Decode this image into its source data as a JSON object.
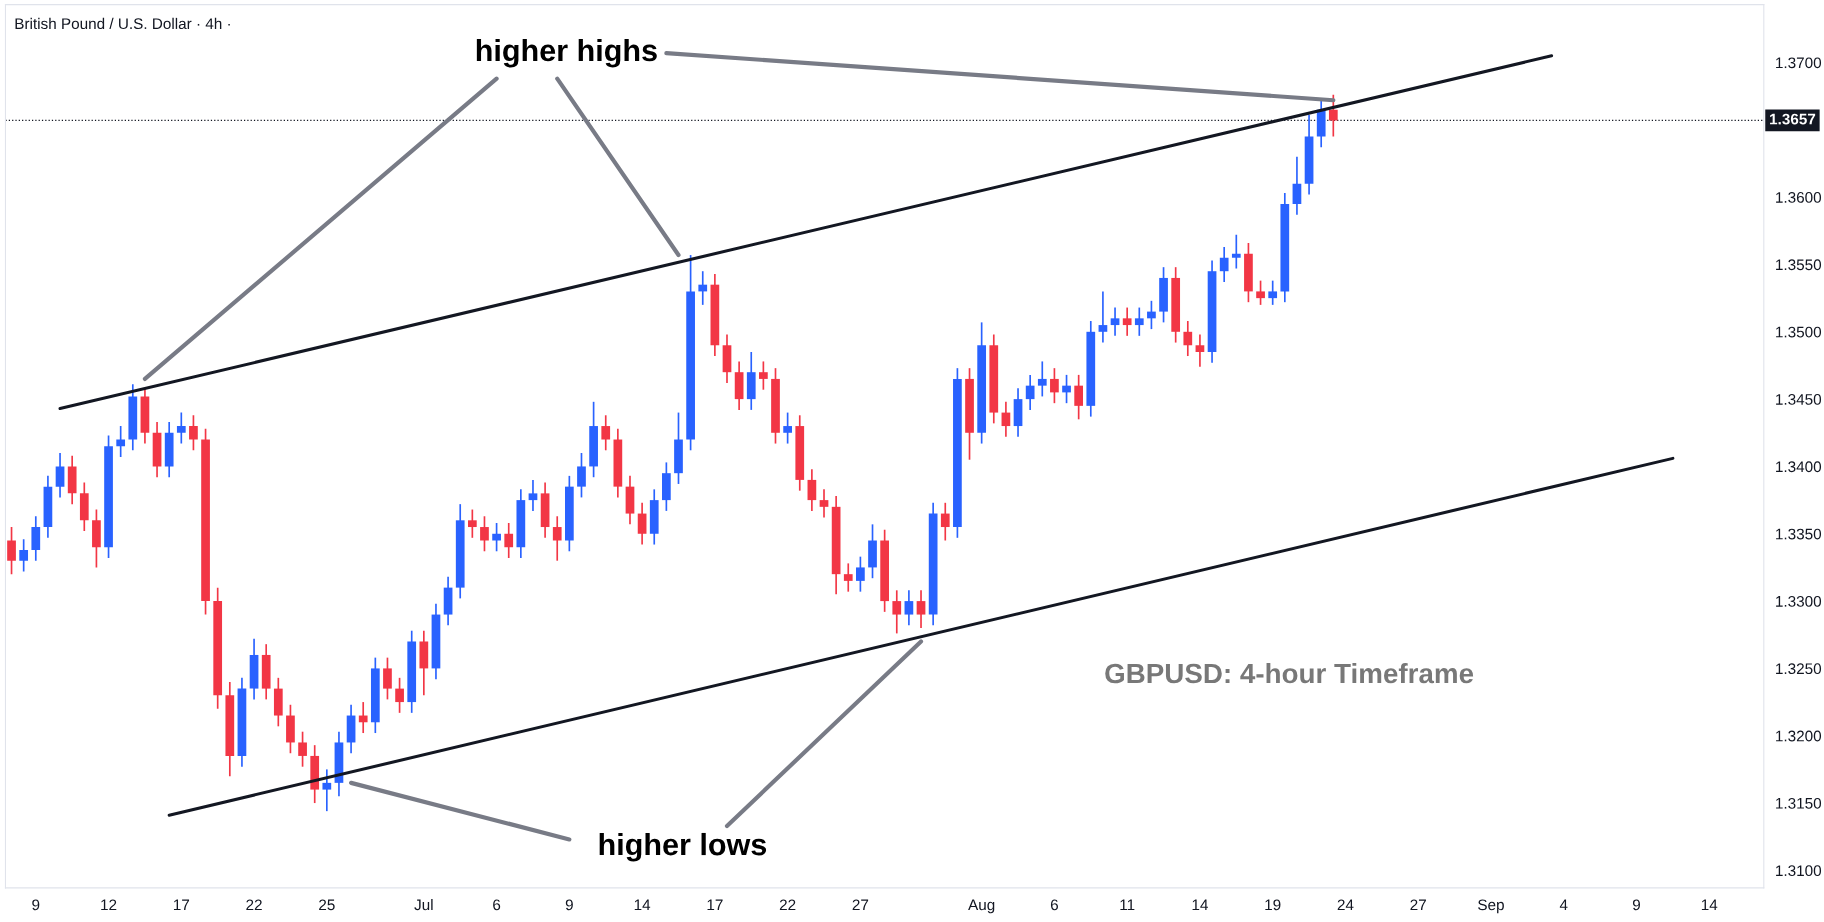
{
  "chart_data": {
    "type": "candlestick",
    "title": "British Pound / U.S. Dollar · 4h ·",
    "annotations": [
      "higher highs",
      "higher lows",
      "GBPUSD: 4-hour Timeframe"
    ],
    "categories": [
      null,
      null,
      "9",
      null,
      null,
      null,
      null,
      null,
      "12",
      null,
      null,
      null,
      null,
      null,
      "17",
      null,
      null,
      null,
      null,
      null,
      "22",
      null,
      null,
      null,
      null,
      null,
      "25",
      null,
      null,
      null,
      null,
      null,
      null,
      null,
      "Jul",
      null,
      null,
      null,
      null,
      null,
      "6",
      null,
      null,
      null,
      null,
      null,
      "9",
      null,
      null,
      null,
      null,
      null,
      "14",
      null,
      null,
      null,
      null,
      null,
      "17",
      null,
      null,
      null,
      null,
      null,
      "22",
      null,
      null,
      null,
      null,
      null,
      "27",
      null,
      null,
      null,
      null,
      null,
      null,
      null,
      null,
      null,
      "Aug",
      null,
      null,
      null,
      null,
      null,
      "6",
      null,
      null,
      null,
      null,
      null,
      "11",
      null,
      null,
      null,
      null,
      null,
      "14",
      null,
      null,
      null,
      null,
      null,
      "19",
      null,
      null,
      null,
      null,
      null,
      "24",
      null,
      null,
      null,
      null,
      null,
      "27",
      null,
      null,
      null,
      null,
      null,
      "Sep",
      null,
      null,
      null,
      null,
      null,
      "4",
      null,
      null,
      null,
      null,
      null,
      "9",
      null,
      null,
      null,
      null,
      null,
      "14",
      null,
      null,
      null,
      null
    ],
    "ohlc": [
      [
        1.3345,
        1.3355,
        1.332,
        1.333
      ],
      [
        1.333,
        1.3346,
        1.3322,
        1.3338
      ],
      [
        1.3338,
        1.3363,
        1.333,
        1.3355
      ],
      [
        1.3355,
        1.3393,
        1.3347,
        1.3385
      ],
      [
        1.3385,
        1.341,
        1.3377,
        1.34
      ],
      [
        1.34,
        1.3408,
        1.3372,
        1.338
      ],
      [
        1.338,
        1.3388,
        1.3352,
        1.336
      ],
      [
        1.336,
        1.3368,
        1.3325,
        1.334
      ],
      [
        1.334,
        1.3423,
        1.3332,
        1.3415
      ],
      [
        1.3415,
        1.343,
        1.3407,
        1.342
      ],
      [
        1.342,
        1.3461,
        1.3412,
        1.3452
      ],
      [
        1.3452,
        1.3458,
        1.3417,
        1.3425
      ],
      [
        1.3425,
        1.3433,
        1.3392,
        1.34
      ],
      [
        1.34,
        1.3433,
        1.3392,
        1.3425
      ],
      [
        1.3425,
        1.344,
        1.3417,
        1.343
      ],
      [
        1.343,
        1.3438,
        1.3412,
        1.342
      ],
      [
        1.342,
        1.3428,
        1.329,
        1.33
      ],
      [
        1.33,
        1.331,
        1.322,
        1.323
      ],
      [
        1.323,
        1.324,
        1.317,
        1.3185
      ],
      [
        1.3185,
        1.3243,
        1.3177,
        1.3235
      ],
      [
        1.3235,
        1.3272,
        1.3227,
        1.326
      ],
      [
        1.326,
        1.3268,
        1.3227,
        1.3235
      ],
      [
        1.3235,
        1.3243,
        1.3207,
        1.3215
      ],
      [
        1.3215,
        1.3223,
        1.3187,
        1.3195
      ],
      [
        1.3195,
        1.3203,
        1.3177,
        1.3185
      ],
      [
        1.3185,
        1.3193,
        1.315,
        1.316
      ],
      [
        1.316,
        1.3175,
        1.3144,
        1.3165
      ],
      [
        1.3165,
        1.3203,
        1.3155,
        1.3195
      ],
      [
        1.3195,
        1.3223,
        1.3187,
        1.3215
      ],
      [
        1.3215,
        1.3225,
        1.3202,
        1.321
      ],
      [
        1.321,
        1.3258,
        1.3202,
        1.325
      ],
      [
        1.325,
        1.3258,
        1.3227,
        1.3235
      ],
      [
        1.3235,
        1.3243,
        1.3217,
        1.3225
      ],
      [
        1.3225,
        1.3278,
        1.3217,
        1.327
      ],
      [
        1.327,
        1.3278,
        1.323,
        1.325
      ],
      [
        1.325,
        1.3298,
        1.3242,
        1.329
      ],
      [
        1.329,
        1.3318,
        1.3282,
        1.331
      ],
      [
        1.331,
        1.3372,
        1.3302,
        1.336
      ],
      [
        1.336,
        1.3368,
        1.3347,
        1.3355
      ],
      [
        1.3355,
        1.3363,
        1.3337,
        1.3345
      ],
      [
        1.3345,
        1.3358,
        1.3337,
        1.335
      ],
      [
        1.335,
        1.3358,
        1.3332,
        1.334
      ],
      [
        1.334,
        1.3383,
        1.3332,
        1.3375
      ],
      [
        1.3375,
        1.339,
        1.3367,
        1.338
      ],
      [
        1.338,
        1.3388,
        1.3347,
        1.3355
      ],
      [
        1.3355,
        1.3363,
        1.333,
        1.3345
      ],
      [
        1.3345,
        1.3393,
        1.3337,
        1.3385
      ],
      [
        1.3385,
        1.341,
        1.3377,
        1.34
      ],
      [
        1.34,
        1.3448,
        1.3392,
        1.343
      ],
      [
        1.343,
        1.3438,
        1.3412,
        1.342
      ],
      [
        1.342,
        1.3428,
        1.3377,
        1.3385
      ],
      [
        1.3385,
        1.3393,
        1.3357,
        1.3365
      ],
      [
        1.3365,
        1.3373,
        1.3342,
        1.335
      ],
      [
        1.335,
        1.3383,
        1.3342,
        1.3375
      ],
      [
        1.3375,
        1.3403,
        1.3367,
        1.3395
      ],
      [
        1.3395,
        1.344,
        1.3387,
        1.342
      ],
      [
        1.342,
        1.3557,
        1.3412,
        1.353
      ],
      [
        1.353,
        1.3545,
        1.352,
        1.3535
      ],
      [
        1.3535,
        1.3543,
        1.3482,
        1.349
      ],
      [
        1.349,
        1.3498,
        1.3462,
        1.347
      ],
      [
        1.347,
        1.3478,
        1.3442,
        1.345
      ],
      [
        1.345,
        1.3485,
        1.3442,
        1.347
      ],
      [
        1.347,
        1.3478,
        1.3457,
        1.3465
      ],
      [
        1.3465,
        1.3473,
        1.3417,
        1.3425
      ],
      [
        1.3425,
        1.344,
        1.3417,
        1.343
      ],
      [
        1.343,
        1.3438,
        1.3382,
        1.339
      ],
      [
        1.339,
        1.3398,
        1.3367,
        1.3375
      ],
      [
        1.3375,
        1.3383,
        1.3362,
        1.337
      ],
      [
        1.337,
        1.3378,
        1.3305,
        1.332
      ],
      [
        1.332,
        1.3328,
        1.3307,
        1.3315
      ],
      [
        1.3315,
        1.3333,
        1.3307,
        1.3325
      ],
      [
        1.3325,
        1.3357,
        1.3317,
        1.3345
      ],
      [
        1.3345,
        1.3353,
        1.3292,
        1.33
      ],
      [
        1.33,
        1.3308,
        1.3276,
        1.329
      ],
      [
        1.329,
        1.3308,
        1.3282,
        1.33
      ],
      [
        1.33,
        1.3308,
        1.328,
        1.329
      ],
      [
        1.329,
        1.3373,
        1.3282,
        1.3365
      ],
      [
        1.3365,
        1.3373,
        1.3345,
        1.3355
      ],
      [
        1.3355,
        1.3473,
        1.3347,
        1.3465
      ],
      [
        1.3465,
        1.3473,
        1.3405,
        1.3425
      ],
      [
        1.3425,
        1.3507,
        1.3417,
        1.349
      ],
      [
        1.349,
        1.3498,
        1.3432,
        1.344
      ],
      [
        1.344,
        1.3448,
        1.3422,
        1.343
      ],
      [
        1.343,
        1.3458,
        1.3422,
        1.345
      ],
      [
        1.345,
        1.3468,
        1.3442,
        1.346
      ],
      [
        1.346,
        1.3478,
        1.3452,
        1.3465
      ],
      [
        1.3465,
        1.3473,
        1.3447,
        1.3455
      ],
      [
        1.3455,
        1.3468,
        1.3447,
        1.346
      ],
      [
        1.346,
        1.3468,
        1.3435,
        1.3445
      ],
      [
        1.3445,
        1.3508,
        1.3437,
        1.35
      ],
      [
        1.35,
        1.353,
        1.3492,
        1.3505
      ],
      [
        1.3505,
        1.3518,
        1.3497,
        1.351
      ],
      [
        1.351,
        1.3518,
        1.3497,
        1.3505
      ],
      [
        1.3505,
        1.3518,
        1.3497,
        1.351
      ],
      [
        1.351,
        1.3523,
        1.3502,
        1.3515
      ],
      [
        1.3515,
        1.3548,
        1.3507,
        1.354
      ],
      [
        1.354,
        1.3548,
        1.3492,
        1.35
      ],
      [
        1.35,
        1.3508,
        1.3482,
        1.349
      ],
      [
        1.349,
        1.3498,
        1.3474,
        1.3485
      ],
      [
        1.3485,
        1.3553,
        1.3477,
        1.3545
      ],
      [
        1.3545,
        1.3563,
        1.3537,
        1.3555
      ],
      [
        1.3555,
        1.3572,
        1.3547,
        1.3558
      ],
      [
        1.3558,
        1.3566,
        1.3522,
        1.353
      ],
      [
        1.353,
        1.3538,
        1.352,
        1.3525
      ],
      [
        1.3525,
        1.3538,
        1.352,
        1.353
      ],
      [
        1.353,
        1.3603,
        1.3522,
        1.3595
      ],
      [
        1.3595,
        1.363,
        1.3587,
        1.361
      ],
      [
        1.361,
        1.3661,
        1.3602,
        1.3645
      ],
      [
        1.3645,
        1.3673,
        1.3637,
        1.3665
      ],
      [
        1.3665,
        1.3676,
        1.3645,
        1.3657
      ],
      null,
      null,
      null,
      null,
      null,
      null,
      null,
      null,
      null,
      null,
      null,
      null,
      null,
      null,
      null,
      null,
      null,
      null,
      null,
      null,
      null,
      null,
      null,
      null,
      null,
      null,
      null,
      null,
      null,
      null,
      null,
      null,
      null,
      null,
      null
    ],
    "colors": [
      "#f23645",
      "#2962ff",
      "#2962ff",
      "#2962ff",
      "#2962ff",
      "#f23645",
      "#f23645",
      "#f23645",
      "#2962ff",
      "#2962ff",
      "#2962ff",
      "#f23645",
      "#f23645",
      "#2962ff",
      "#2962ff",
      "#f23645",
      "#f23645",
      "#f23645",
      "#f23645",
      "#2962ff",
      "#2962ff",
      "#f23645",
      "#f23645",
      "#f23645",
      "#f23645",
      "#f23645",
      "#2962ff",
      "#2962ff",
      "#2962ff",
      "#f23645",
      "#2962ff",
      "#f23645",
      "#f23645",
      "#2962ff",
      "#f23645",
      "#2962ff",
      "#2962ff",
      "#2962ff",
      "#f23645",
      "#f23645",
      "#2962ff",
      "#f23645",
      "#2962ff",
      "#2962ff",
      "#f23645",
      "#f23645",
      "#2962ff",
      "#2962ff",
      "#2962ff",
      "#f23645",
      "#f23645",
      "#f23645",
      "#f23645",
      "#2962ff",
      "#2962ff",
      "#2962ff",
      "#2962ff",
      "#2962ff",
      "#f23645",
      "#f23645",
      "#f23645",
      "#2962ff",
      "#f23645",
      "#f23645",
      "#2962ff",
      "#f23645",
      "#f23645",
      "#f23645",
      "#f23645",
      "#f23645",
      "#2962ff",
      "#2962ff",
      "#f23645",
      "#f23645",
      "#2962ff",
      "#f23645",
      "#2962ff",
      "#f23645",
      "#2962ff",
      "#f23645",
      "#2962ff",
      "#f23645",
      "#f23645",
      "#2962ff",
      "#2962ff",
      "#2962ff",
      "#f23645",
      "#2962ff",
      "#f23645",
      "#2962ff",
      "#2962ff",
      "#2962ff",
      "#f23645",
      "#2962ff",
      "#2962ff",
      "#2962ff",
      "#f23645",
      "#f23645",
      "#f23645",
      "#2962ff",
      "#2962ff",
      "#2962ff",
      "#f23645",
      "#f23645",
      "#2962ff",
      "#2962ff",
      "#2962ff",
      "#2962ff",
      "#2962ff",
      "#f23645",
      null,
      null,
      null,
      null,
      null,
      null,
      null,
      null,
      null,
      null,
      null,
      null,
      null,
      null,
      null,
      null,
      null,
      null,
      null,
      null,
      null,
      null,
      null,
      null,
      null,
      null,
      null,
      null,
      null,
      null,
      null,
      null,
      null,
      null,
      null
    ],
    "series": [
      {
        "type": "line",
        "color": "#131722",
        "values": [
          null,
          null,
          null,
          null,
          1.3443,
          null,
          null,
          null,
          null,
          null,
          null,
          null,
          null,
          null,
          null,
          null,
          null,
          null,
          null,
          null,
          null,
          null,
          null,
          null,
          null,
          null,
          null,
          null,
          null,
          null,
          null,
          null,
          null,
          null,
          null,
          null,
          null,
          null,
          null,
          null,
          null,
          null,
          null,
          null,
          null,
          null,
          null,
          null,
          null,
          null,
          null,
          null,
          null,
          null,
          null,
          null,
          null,
          null,
          null,
          null,
          null,
          null,
          null,
          null,
          null,
          null,
          null,
          null,
          null,
          null,
          null,
          null,
          null,
          null,
          null,
          null,
          null,
          null,
          null,
          null,
          null,
          null,
          null,
          null,
          null,
          null,
          null,
          null,
          null,
          null,
          null,
          null,
          null,
          null,
          null,
          null,
          null,
          null,
          null,
          null,
          null,
          null,
          null,
          null,
          null,
          null,
          null,
          null,
          null,
          null,
          null,
          null,
          null,
          null,
          null,
          null,
          null,
          null,
          null,
          null,
          null,
          null,
          null,
          null,
          null,
          null,
          null,
          1.3705,
          null,
          null,
          null,
          null,
          null,
          null,
          null,
          null,
          null,
          null,
          null,
          null,
          null,
          null,
          null,
          null,
          null
        ]
      },
      {
        "type": "line",
        "color": "#131722",
        "values": [
          null,
          null,
          null,
          null,
          null,
          null,
          null,
          null,
          null,
          null,
          null,
          null,
          null,
          1.3141,
          null,
          null,
          null,
          null,
          null,
          null,
          null,
          null,
          null,
          null,
          null,
          null,
          null,
          null,
          null,
          null,
          null,
          null,
          null,
          null,
          null,
          null,
          null,
          null,
          null,
          null,
          null,
          null,
          null,
          null,
          null,
          null,
          null,
          null,
          null,
          null,
          null,
          null,
          null,
          null,
          null,
          null,
          null,
          null,
          null,
          null,
          null,
          null,
          null,
          null,
          null,
          null,
          null,
          null,
          null,
          null,
          null,
          null,
          null,
          null,
          null,
          null,
          null,
          null,
          null,
          null,
          null,
          null,
          null,
          null,
          null,
          null,
          null,
          null,
          null,
          null,
          null,
          null,
          null,
          null,
          null,
          null,
          null,
          null,
          null,
          null,
          null,
          null,
          null,
          null,
          null,
          null,
          null,
          null,
          null,
          null,
          null,
          null,
          null,
          null,
          null,
          null,
          null,
          null,
          null,
          null,
          null,
          null,
          null,
          null,
          null,
          null,
          null,
          null,
          null,
          null,
          null,
          null,
          null,
          null,
          null,
          null,
          null,
          1.3406,
          null,
          null,
          null,
          null,
          null,
          null,
          null
        ]
      },
      {
        "type": "line",
        "color": "#787b86",
        "values": [
          null,
          null,
          null,
          null,
          null,
          null,
          null,
          null,
          null,
          null,
          null,
          1.3465,
          null,
          null,
          null,
          null,
          null,
          null,
          null,
          null,
          null,
          null,
          null,
          null,
          null,
          null,
          null,
          null,
          null,
          null,
          null,
          null,
          null,
          null,
          null,
          null,
          null,
          null,
          null,
          null,
          1.3688,
          null,
          null,
          null,
          null,
          null,
          null,
          null,
          null,
          null,
          null,
          null,
          null,
          null,
          null,
          null,
          null,
          null,
          null,
          null,
          null,
          null,
          null,
          null,
          null,
          null,
          null,
          null,
          null,
          null,
          null,
          null,
          null,
          null,
          null,
          null,
          null,
          null,
          null,
          null,
          null,
          null,
          null,
          null,
          null,
          null,
          null,
          null,
          null,
          null,
          null,
          null,
          null,
          null,
          null,
          null,
          null,
          null,
          null,
          null,
          null,
          null,
          null,
          null,
          null,
          null,
          null,
          null,
          null,
          null,
          null,
          null,
          null,
          null,
          null,
          null,
          null,
          null,
          null,
          null,
          null,
          null,
          null,
          null,
          null,
          null,
          null,
          null,
          null,
          null,
          null,
          null,
          null,
          null,
          null,
          null,
          null,
          null,
          null,
          null,
          null,
          null,
          null,
          null,
          null
        ]
      },
      {
        "type": "line",
        "color": "#787b86",
        "values": [
          null,
          null,
          null,
          null,
          null,
          null,
          null,
          null,
          null,
          null,
          null,
          null,
          null,
          null,
          null,
          null,
          null,
          null,
          null,
          null,
          null,
          null,
          null,
          null,
          null,
          null,
          null,
          null,
          null,
          null,
          null,
          null,
          null,
          null,
          null,
          null,
          null,
          null,
          null,
          null,
          null,
          null,
          null,
          null,
          null,
          1.3688,
          null,
          null,
          null,
          null,
          null,
          null,
          null,
          null,
          null,
          1.3557,
          null,
          null,
          null,
          null,
          null,
          null,
          null,
          null,
          null,
          null,
          null,
          null,
          null,
          null,
          null,
          null,
          null,
          null,
          null,
          null,
          null,
          null,
          null,
          null,
          null,
          null,
          null,
          null,
          null,
          null,
          null,
          null,
          null,
          null,
          null,
          null,
          null,
          null,
          null,
          null,
          null,
          null,
          null,
          null,
          null,
          null,
          null,
          null,
          null,
          null,
          null,
          null,
          null,
          null,
          null,
          null,
          null,
          null,
          null,
          null,
          null,
          null,
          null,
          null,
          null,
          null,
          null,
          null,
          null,
          null,
          null,
          null,
          null,
          null,
          null,
          null,
          null,
          null,
          null,
          null,
          null,
          null,
          null,
          null,
          null,
          null,
          null,
          null,
          null
        ]
      },
      {
        "type": "line",
        "color": "#787b86",
        "values": [
          null,
          null,
          null,
          null,
          null,
          null,
          null,
          null,
          null,
          null,
          null,
          null,
          null,
          null,
          null,
          null,
          null,
          null,
          null,
          null,
          null,
          null,
          null,
          null,
          null,
          null,
          null,
          null,
          null,
          null,
          null,
          null,
          null,
          null,
          null,
          null,
          null,
          null,
          null,
          null,
          null,
          null,
          null,
          null,
          null,
          null,
          null,
          null,
          null,
          null,
          null,
          null,
          null,
          null,
          1.3707,
          null,
          null,
          null,
          null,
          null,
          null,
          null,
          null,
          null,
          null,
          null,
          null,
          null,
          null,
          null,
          null,
          null,
          null,
          null,
          null,
          null,
          null,
          null,
          null,
          null,
          null,
          null,
          null,
          null,
          null,
          null,
          null,
          null,
          null,
          null,
          null,
          null,
          null,
          null,
          null,
          null,
          null,
          null,
          null,
          null,
          null,
          null,
          null,
          null,
          null,
          null,
          null,
          null,
          null,
          1.3672,
          null,
          null,
          null,
          null,
          null,
          null,
          null,
          null,
          null,
          null,
          null,
          null,
          null,
          null,
          null,
          null,
          null,
          null,
          null,
          null,
          null,
          null,
          null,
          null,
          null,
          null,
          null,
          null,
          null,
          null,
          null,
          null,
          null,
          null,
          null
        ]
      },
      {
        "type": "line",
        "color": "#787b86",
        "values": [
          null,
          null,
          null,
          null,
          null,
          null,
          null,
          null,
          null,
          null,
          null,
          null,
          null,
          null,
          null,
          null,
          null,
          null,
          null,
          null,
          null,
          null,
          null,
          null,
          null,
          null,
          null,
          null,
          1.3165,
          null,
          null,
          null,
          null,
          null,
          null,
          null,
          null,
          null,
          null,
          null,
          null,
          null,
          null,
          null,
          null,
          null,
          1.3123,
          null,
          null,
          null,
          null,
          null,
          null,
          null,
          null,
          null,
          null,
          null,
          null,
          null,
          null,
          null,
          null,
          null,
          null,
          null,
          null,
          null,
          null,
          null,
          null,
          null,
          null,
          null,
          null,
          null,
          null,
          null,
          null,
          null,
          null,
          null,
          null,
          null,
          null,
          null,
          null,
          null,
          null,
          null,
          null,
          null,
          null,
          null,
          null,
          null,
          null,
          null,
          null,
          null,
          null,
          null,
          null,
          null,
          null,
          null,
          null,
          null,
          null,
          null,
          null,
          null,
          null,
          null,
          null,
          null,
          null,
          null,
          null,
          null,
          null,
          null,
          null,
          null,
          null,
          null,
          null,
          null,
          null,
          null,
          null,
          null,
          null,
          null,
          null,
          null,
          null,
          null,
          null,
          null,
          null,
          null,
          null,
          null,
          null
        ]
      },
      {
        "type": "line",
        "color": "#787b86",
        "values": [
          null,
          null,
          null,
          null,
          null,
          null,
          null,
          null,
          null,
          null,
          null,
          null,
          null,
          null,
          null,
          null,
          null,
          null,
          null,
          null,
          null,
          null,
          null,
          null,
          null,
          null,
          null,
          null,
          null,
          null,
          null,
          null,
          null,
          null,
          null,
          null,
          null,
          null,
          null,
          null,
          null,
          null,
          null,
          null,
          null,
          null,
          null,
          null,
          null,
          null,
          null,
          null,
          null,
          null,
          null,
          null,
          null,
          null,
          null,
          1.3133,
          null,
          null,
          null,
          null,
          null,
          null,
          null,
          null,
          null,
          null,
          null,
          null,
          null,
          null,
          null,
          1.327,
          null,
          null,
          null,
          null,
          null,
          null,
          null,
          null,
          null,
          null,
          null,
          null,
          null,
          null,
          null,
          null,
          null,
          null,
          null,
          null,
          null,
          null,
          null,
          null,
          null,
          null,
          null,
          null,
          null,
          null,
          null,
          null,
          null,
          null,
          null,
          null,
          null,
          null,
          null,
          null,
          null,
          null,
          null,
          null,
          null,
          null,
          null,
          null,
          null,
          null,
          null,
          null,
          null,
          null,
          null,
          null,
          null,
          null,
          null,
          null,
          null,
          null,
          null,
          null,
          null,
          null,
          null,
          null,
          null
        ]
      }
    ],
    "ref_lines": [
      {
        "axis": "y",
        "value": 1.3657,
        "label": "1.3657",
        "color": "#131722",
        "line_style": "dotted"
      }
    ],
    "ylim": [
      1.3087,
      1.3743
    ],
    "yticks": [
      {
        "value": 1.31,
        "label": "1.3100"
      },
      {
        "value": 1.315,
        "label": "1.3150"
      },
      {
        "value": 1.32,
        "label": "1.3200"
      },
      {
        "value": 1.325,
        "label": "1.3250"
      },
      {
        "value": 1.33,
        "label": "1.3300"
      },
      {
        "value": 1.335,
        "label": "1.3350"
      },
      {
        "value": 1.34,
        "label": "1.3400"
      },
      {
        "value": 1.345,
        "label": "1.3450"
      },
      {
        "value": 1.35,
        "label": "1.3500"
      },
      {
        "value": 1.355,
        "label": "1.3550"
      },
      {
        "value": 1.36,
        "label": "1.3600"
      },
      {
        "value": 1.37,
        "label": "1.3700"
      }
    ],
    "grid": false,
    "legend": false
  }
}
